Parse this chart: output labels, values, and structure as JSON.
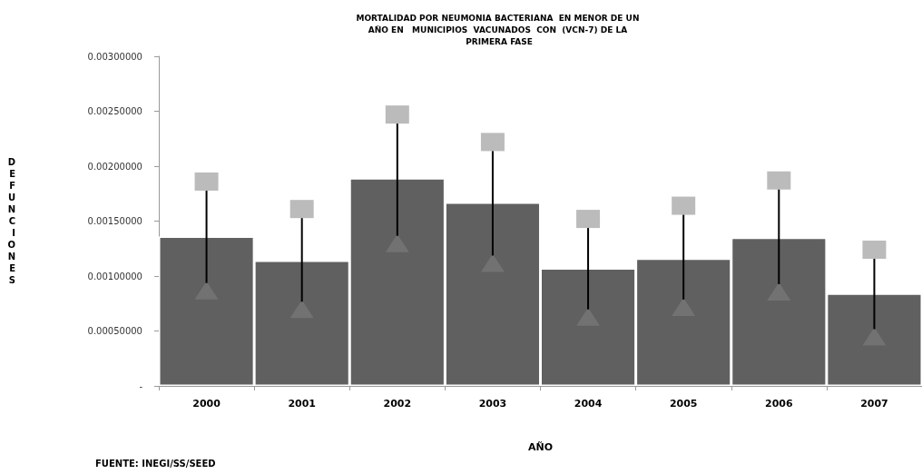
{
  "chart_data": {
    "type": "bar",
    "title": "MORTALIDAD POR NEUMONIA BACTERIANA  EN MENOR DE UN AÑO EN   MUNICIPIOS  VACUNADOS  CON  (VCN-7) DE LA PRIMERA FASE",
    "xlabel": "AÑO",
    "ylabel": "DEFUNCIONES",
    "categories": [
      "2000",
      "2001",
      "2002",
      "2003",
      "2004",
      "2005",
      "2006",
      "2007"
    ],
    "series": [
      {
        "color": "#606060",
        "values": [
          0.00136,
          0.00114,
          0.00189,
          0.00167,
          0.00107,
          0.00116,
          0.00135,
          0.00084
        ]
      },
      {
        "type": "scatter",
        "marker": "triangle",
        "color": "#777777",
        "values": [
          0.00087,
          0.0007,
          0.0013,
          0.00112,
          0.00063,
          0.00072,
          0.00086,
          0.00045
        ]
      },
      {
        "type": "scatter",
        "marker": "square",
        "color": "#aaaaaa",
        "values": [
          0.00186,
          0.00161,
          0.00247,
          0.00222,
          0.00152,
          0.00164,
          0.00187,
          0.00124
        ]
      }
    ],
    "ylim": [
      0,
      0.003
    ],
    "yticks": [
      {
        "value": 0,
        "label": "-"
      },
      {
        "value": 0.0005,
        "label": "0.00050000"
      },
      {
        "value": 0.001,
        "label": "0.00100000"
      },
      {
        "value": 0.0015,
        "label": "0.00150000"
      },
      {
        "value": 0.002,
        "label": "0.00200000"
      },
      {
        "value": 0.0025,
        "label": "0.00250000"
      },
      {
        "value": 0.003,
        "label": "0.00300000"
      }
    ],
    "grid": false,
    "annotations": [
      "FUENTE: INEGI/SS/SEED"
    ]
  }
}
